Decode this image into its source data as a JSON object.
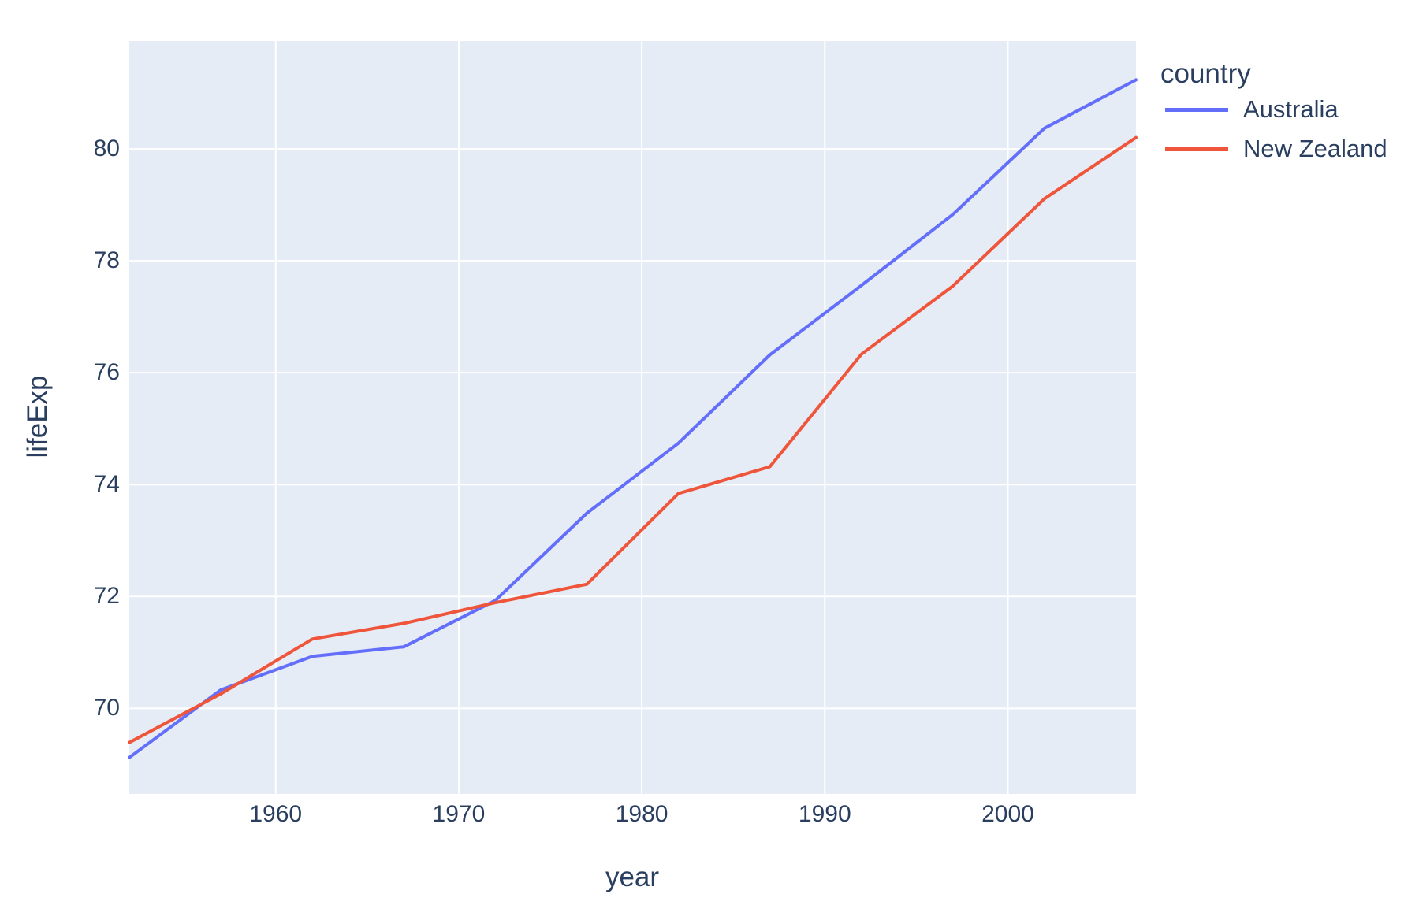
{
  "chart_data": {
    "type": "line",
    "title": "",
    "xlabel": "year",
    "ylabel": "lifeExp",
    "legend_title": "country",
    "x": [
      1952,
      1957,
      1962,
      1967,
      1972,
      1977,
      1982,
      1987,
      1992,
      1997,
      2002,
      2007
    ],
    "series": [
      {
        "name": "Australia",
        "color": "#636EFA",
        "values": [
          69.12,
          70.33,
          70.93,
          71.1,
          71.93,
          73.49,
          74.74,
          76.32,
          77.56,
          78.83,
          80.37,
          81.235
        ]
      },
      {
        "name": "New Zealand",
        "color": "#EF553B",
        "values": [
          69.39,
          70.26,
          71.24,
          71.52,
          71.89,
          72.22,
          73.84,
          74.32,
          76.33,
          77.55,
          79.11,
          80.204
        ]
      }
    ],
    "xlim": [
      1952,
      2007
    ],
    "ylim": [
      68.47,
      81.93
    ],
    "xticks": [
      1960,
      1970,
      1980,
      1990,
      2000
    ],
    "yticks": [
      70,
      72,
      74,
      76,
      78,
      80
    ],
    "grid": true,
    "legend_position": "right-top",
    "colors": {
      "plot_bg": "#E5ECF6",
      "grid": "#FFFFFF",
      "font": "#2a3f5f",
      "page_bg": "#FFFFFF"
    }
  }
}
